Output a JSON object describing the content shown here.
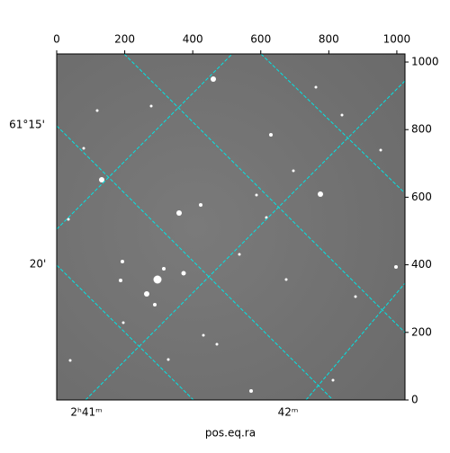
{
  "chart_data": {
    "type": "image",
    "xlabel": "pos.eq.ra",
    "xlim": [
      0,
      1024
    ],
    "ylim": [
      0,
      1024
    ],
    "xticks": [
      0,
      200,
      400,
      600,
      800,
      1000
    ],
    "yticks": [
      0,
      200,
      400,
      600,
      800,
      1000
    ],
    "dec_labels": [
      "61°15'",
      "20'"
    ],
    "ra_labels": [
      "2ʰ41ᵐ",
      "42ᵐ"
    ],
    "grid": true
  }
}
